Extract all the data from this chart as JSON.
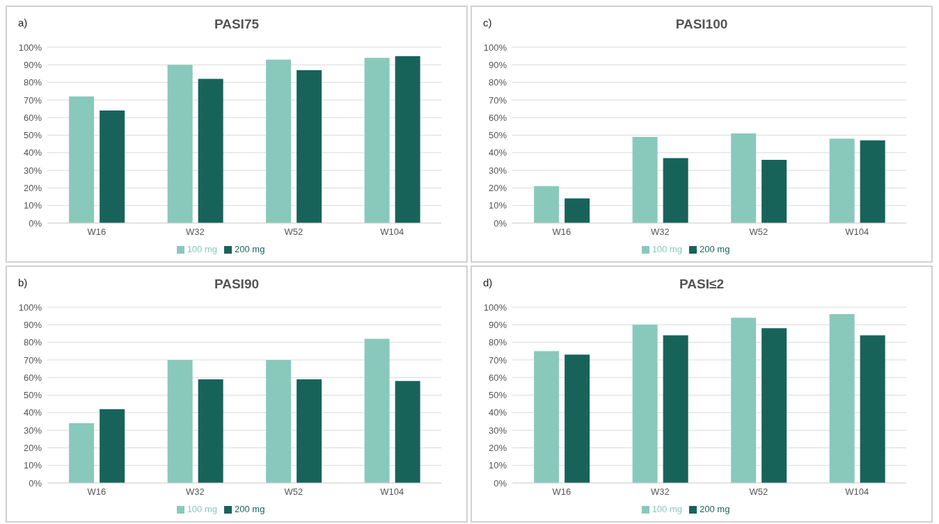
{
  "chart_data": [
    {
      "type": "bar",
      "title": "PASI75",
      "annotations": [
        "a)"
      ],
      "categories": [
        "W16",
        "W32",
        "W52",
        "W104"
      ],
      "series": [
        {
          "name": "100 mg",
          "color": "#88c9bb",
          "values": [
            72,
            90,
            93,
            94
          ]
        },
        {
          "name": "200 mg",
          "color": "#17635a",
          "values": [
            64,
            82,
            87,
            95
          ]
        }
      ],
      "ylim": [
        0,
        100
      ],
      "yticks": [
        {
          "value": 0,
          "label": "0%"
        },
        {
          "value": 10,
          "label": "10%"
        },
        {
          "value": 20,
          "label": "20%"
        },
        {
          "value": 30,
          "label": "30%"
        },
        {
          "value": 40,
          "label": "40%"
        },
        {
          "value": 50,
          "label": "50%"
        },
        {
          "value": 60,
          "label": "60%"
        },
        {
          "value": 70,
          "label": "70%"
        },
        {
          "value": 80,
          "label": "80%"
        },
        {
          "value": 90,
          "label": "90%"
        },
        {
          "value": 100,
          "label": "100%"
        }
      ],
      "grid": "y",
      "legend": "bottom"
    },
    {
      "type": "bar",
      "title": "PASI100",
      "annotations": [
        "c)"
      ],
      "categories": [
        "W16",
        "W32",
        "W52",
        "W104"
      ],
      "series": [
        {
          "name": "100 mg",
          "color": "#88c9bb",
          "values": [
            21,
            49,
            51,
            48
          ]
        },
        {
          "name": "200 mg",
          "color": "#17635a",
          "values": [
            14,
            37,
            36,
            47
          ]
        }
      ],
      "ylim": [
        0,
        100
      ],
      "yticks": [
        {
          "value": 0,
          "label": "0%"
        },
        {
          "value": 10,
          "label": "10%"
        },
        {
          "value": 20,
          "label": "20%"
        },
        {
          "value": 30,
          "label": "30%"
        },
        {
          "value": 40,
          "label": "40%"
        },
        {
          "value": 50,
          "label": "50%"
        },
        {
          "value": 60,
          "label": "60%"
        },
        {
          "value": 70,
          "label": "70%"
        },
        {
          "value": 80,
          "label": "80%"
        },
        {
          "value": 90,
          "label": "90%"
        },
        {
          "value": 100,
          "label": "100%"
        }
      ],
      "grid": "y",
      "legend": "bottom"
    },
    {
      "type": "bar",
      "title": "PASI90",
      "annotations": [
        "b)"
      ],
      "categories": [
        "W16",
        "W32",
        "W52",
        "W104"
      ],
      "series": [
        {
          "name": "100 mg",
          "color": "#88c9bb",
          "values": [
            34,
            70,
            70,
            82
          ]
        },
        {
          "name": "200 mg",
          "color": "#17635a",
          "values": [
            42,
            59,
            59,
            58
          ]
        }
      ],
      "ylim": [
        0,
        100
      ],
      "yticks": [
        {
          "value": 0,
          "label": "0%"
        },
        {
          "value": 10,
          "label": "10%"
        },
        {
          "value": 20,
          "label": "20%"
        },
        {
          "value": 30,
          "label": "30%"
        },
        {
          "value": 40,
          "label": "40%"
        },
        {
          "value": 50,
          "label": "50%"
        },
        {
          "value": 60,
          "label": "60%"
        },
        {
          "value": 70,
          "label": "70%"
        },
        {
          "value": 80,
          "label": "80%"
        },
        {
          "value": 90,
          "label": "90%"
        },
        {
          "value": 100,
          "label": "100%"
        }
      ],
      "grid": "y",
      "legend": "bottom"
    },
    {
      "type": "bar",
      "title": "PASI≤2",
      "annotations": [
        "d)"
      ],
      "categories": [
        "W16",
        "W32",
        "W52",
        "W104"
      ],
      "series": [
        {
          "name": "100 mg",
          "color": "#88c9bb",
          "values": [
            75,
            90,
            94,
            96
          ]
        },
        {
          "name": "200 mg",
          "color": "#17635a",
          "values": [
            73,
            84,
            88,
            84
          ]
        }
      ],
      "ylim": [
        0,
        100
      ],
      "yticks": [
        {
          "value": 0,
          "label": "0%"
        },
        {
          "value": 10,
          "label": "10%"
        },
        {
          "value": 20,
          "label": "20%"
        },
        {
          "value": 30,
          "label": "30%"
        },
        {
          "value": 40,
          "label": "40%"
        },
        {
          "value": 50,
          "label": "50%"
        },
        {
          "value": 60,
          "label": "60%"
        },
        {
          "value": 70,
          "label": "70%"
        },
        {
          "value": 80,
          "label": "80%"
        },
        {
          "value": 90,
          "label": "90%"
        },
        {
          "value": 100,
          "label": "100%"
        }
      ],
      "grid": "y",
      "legend": "bottom"
    }
  ]
}
